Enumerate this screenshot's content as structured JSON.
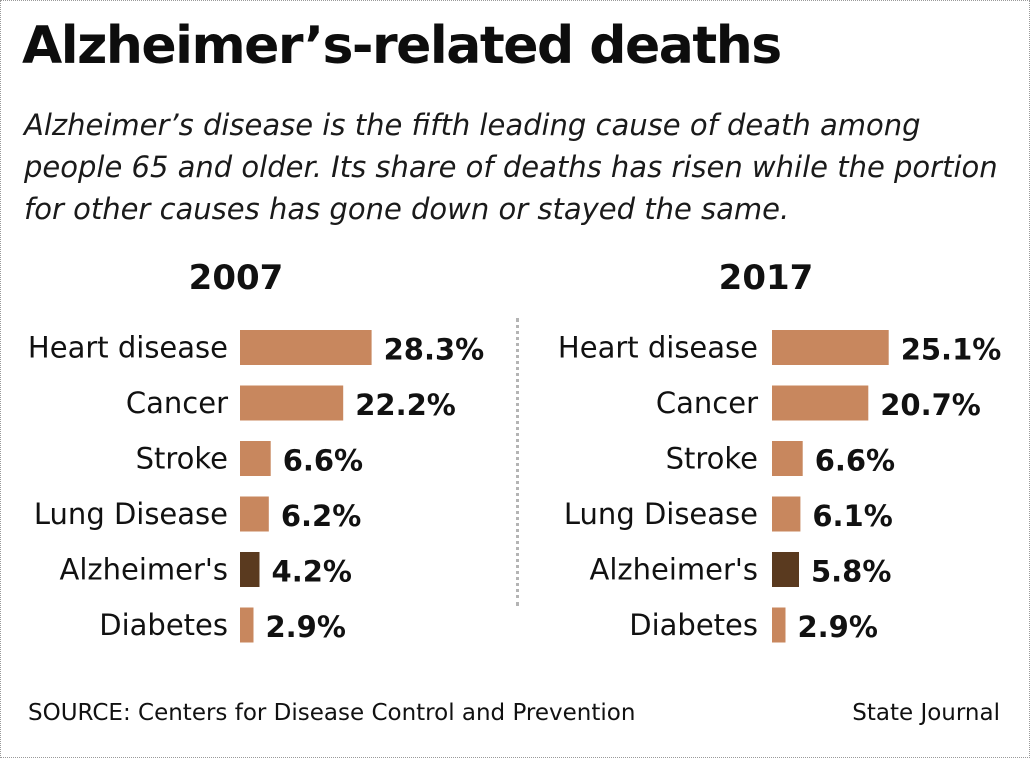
{
  "title": "Alzheimer’s-related deaths",
  "subtitle": "Alzheimer’s disease is the fifth leading cause of death among people 65 and older. Its share of deaths has risen while the portion for other causes has gone down or stayed the same.",
  "source": "SOURCE: Centers for Disease Control and Prevention",
  "credit": "State Journal",
  "colors": {
    "bar": "#c8875e",
    "highlight": "#5a3a1f",
    "text": "#111111"
  },
  "chart_data": [
    {
      "type": "bar",
      "orientation": "horizontal",
      "title": "2007",
      "categories": [
        "Heart disease",
        "Cancer",
        "Stroke",
        "Lung Disease",
        "Alzheimer's",
        "Diabetes"
      ],
      "values": [
        28.3,
        22.2,
        6.6,
        6.2,
        4.2,
        2.9
      ],
      "value_labels": [
        "28.3%",
        "22.2%",
        "6.6%",
        "6.2%",
        "4.2%",
        "2.9%"
      ],
      "highlight": "Alzheimer's",
      "unit": "%",
      "grid": false
    },
    {
      "type": "bar",
      "orientation": "horizontal",
      "title": "2017",
      "categories": [
        "Heart disease",
        "Cancer",
        "Stroke",
        "Lung Disease",
        "Alzheimer's",
        "Diabetes"
      ],
      "values": [
        25.1,
        20.7,
        6.6,
        6.1,
        5.8,
        2.9
      ],
      "value_labels": [
        "25.1%",
        "20.7%",
        "6.6%",
        "6.1%",
        "5.8%",
        "2.9%"
      ],
      "highlight": "Alzheimer's",
      "unit": "%",
      "grid": false
    }
  ]
}
